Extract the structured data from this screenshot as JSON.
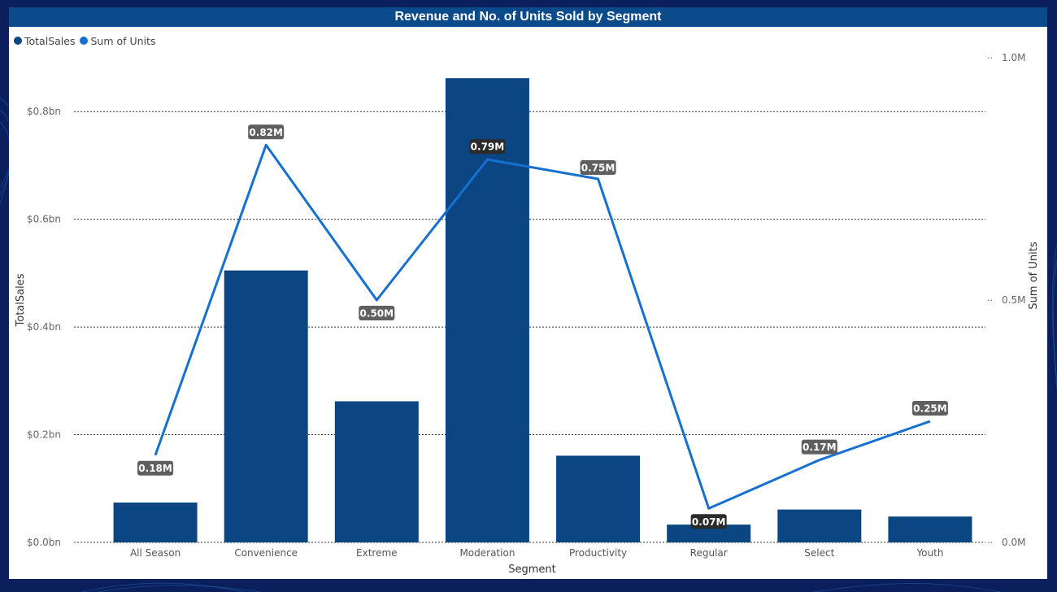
{
  "colors": {
    "background": "#0a1f5c",
    "title_bar": "#0b4a8b",
    "bar": "#0b4682",
    "line": "#1670d0",
    "label_bg": "#5f5f5f",
    "label_bg_dark": "#2b2b2b"
  },
  "chart_data": {
    "type": "bar",
    "title": "Revenue and No. of Units Sold by Segment",
    "xlabel": "Segment",
    "ylabel": "TotalSales",
    "y2label": "Sum of Units",
    "categories": [
      "All Season",
      "Convenience",
      "Extreme",
      "Moderation",
      "Productivity",
      "Regular",
      "Select",
      "Youth"
    ],
    "ylim": [
      0,
      0.9
    ],
    "yticks": [
      "$0.0bn",
      "$0.2bn",
      "$0.4bn",
      "$0.6bn",
      "$0.8bn"
    ],
    "y2lim": [
      0,
      1.0
    ],
    "y2ticks": [
      "0.0M",
      "0.5M",
      "1.0M"
    ],
    "grid": true,
    "legend": "top-left",
    "series": [
      {
        "name": "TotalSales",
        "kind": "bar",
        "values": [
          0.074,
          0.505,
          0.262,
          0.862,
          0.161,
          0.033,
          0.061,
          0.048
        ]
      },
      {
        "name": "Sum of Units",
        "kind": "line",
        "axis": "secondary",
        "values": [
          0.18,
          0.82,
          0.5,
          0.79,
          0.75,
          0.07,
          0.17,
          0.25
        ],
        "labels": [
          "0.18M",
          "0.82M",
          "0.50M",
          "0.79M",
          "0.75M",
          "0.07M",
          "0.17M",
          "0.25M"
        ]
      }
    ]
  }
}
